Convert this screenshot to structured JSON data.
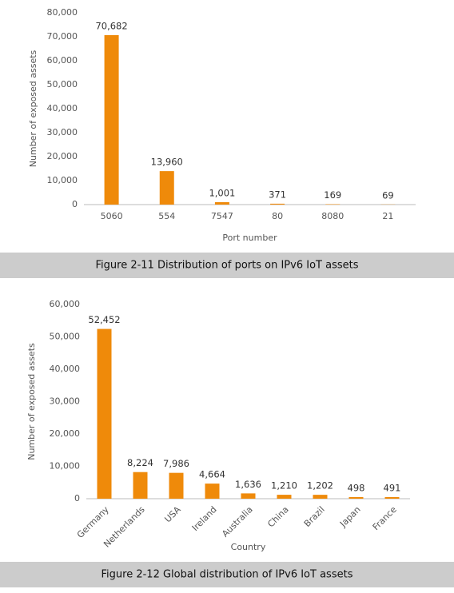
{
  "chart_data": [
    {
      "type": "bar",
      "title": "Figure 2-11 Distribution of ports on IPv6 IoT assets",
      "x_label": "Port number",
      "y_label": "Number of exposed assets",
      "categories": [
        "5060",
        "554",
        "7547",
        "80",
        "8080",
        "21"
      ],
      "values": [
        70682,
        13960,
        1001,
        371,
        169,
        69
      ],
      "value_labels": [
        "70,682",
        "13,960",
        "1,001",
        "371",
        "169",
        "69"
      ],
      "color": "#ef8a0a",
      "ylim": [
        0,
        80000
      ],
      "yticks": [
        0,
        {
          "value": 10000,
          "label": "10,000"
        },
        {
          "value": 20000,
          "label": "20,000"
        },
        {
          "value": 30000,
          "label": "30,000"
        },
        {
          "value": 40000,
          "label": "40,000"
        },
        {
          "value": 50000,
          "label": "50,000"
        },
        {
          "value": 60000,
          "label": "60,000"
        },
        {
          "value": 70000,
          "label": "70,000"
        },
        {
          "value": 80000,
          "label": "80,000"
        }
      ],
      "grid": false
    },
    {
      "type": "bar",
      "title": "Figure 2-12 Global distribution of IPv6 IoT assets",
      "x_label": "Country",
      "y_label": "Number of exposed assets",
      "categories": [
        "Germany",
        "Netherlands",
        "USA",
        "Ireland",
        "Australia",
        "China",
        "Brazil",
        "Japan",
        "France"
      ],
      "values": [
        52452,
        8224,
        7986,
        4664,
        1636,
        1210,
        1202,
        498,
        491
      ],
      "value_labels": [
        "52,452",
        "8,224",
        "7,986",
        "4,664",
        "1,636",
        "1,210",
        "1,202",
        "498",
        "491"
      ],
      "color": "#ef8a0a",
      "ylim": [
        0,
        60000
      ],
      "yticks": [
        0,
        {
          "value": 10000,
          "label": "10,000"
        },
        {
          "value": 20000,
          "label": "20,000"
        },
        {
          "value": 30000,
          "label": "30,000"
        },
        {
          "value": 40000,
          "label": "40,000"
        },
        {
          "value": 50000,
          "label": "50,000"
        },
        {
          "value": 60000,
          "label": "60,000"
        }
      ],
      "grid": false
    }
  ]
}
